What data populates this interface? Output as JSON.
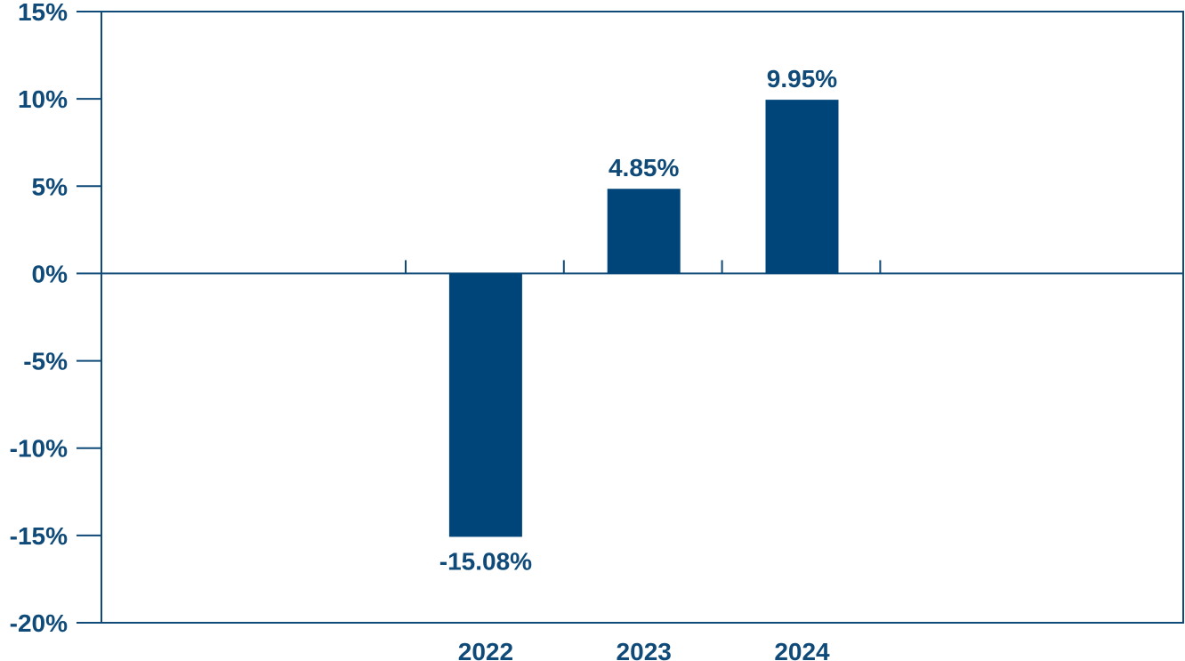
{
  "chart_data": {
    "type": "bar",
    "categories": [
      "2022",
      "2023",
      "2024"
    ],
    "values": [
      -15.08,
      4.85,
      9.95
    ],
    "data_labels": [
      "-15.08%",
      "4.85%",
      "9.95%"
    ],
    "ylim": [
      -20,
      15
    ],
    "yticks": [
      15,
      10,
      5,
      0,
      -5,
      -10,
      -15,
      -20
    ],
    "ytick_labels": [
      "15%",
      "10%",
      "5%",
      "0%",
      "-5%",
      "-10%",
      "-15%",
      "-20%"
    ],
    "grid": false,
    "legend": "none",
    "bar_color": "#00457a",
    "axis_color": "#0f4a78"
  }
}
